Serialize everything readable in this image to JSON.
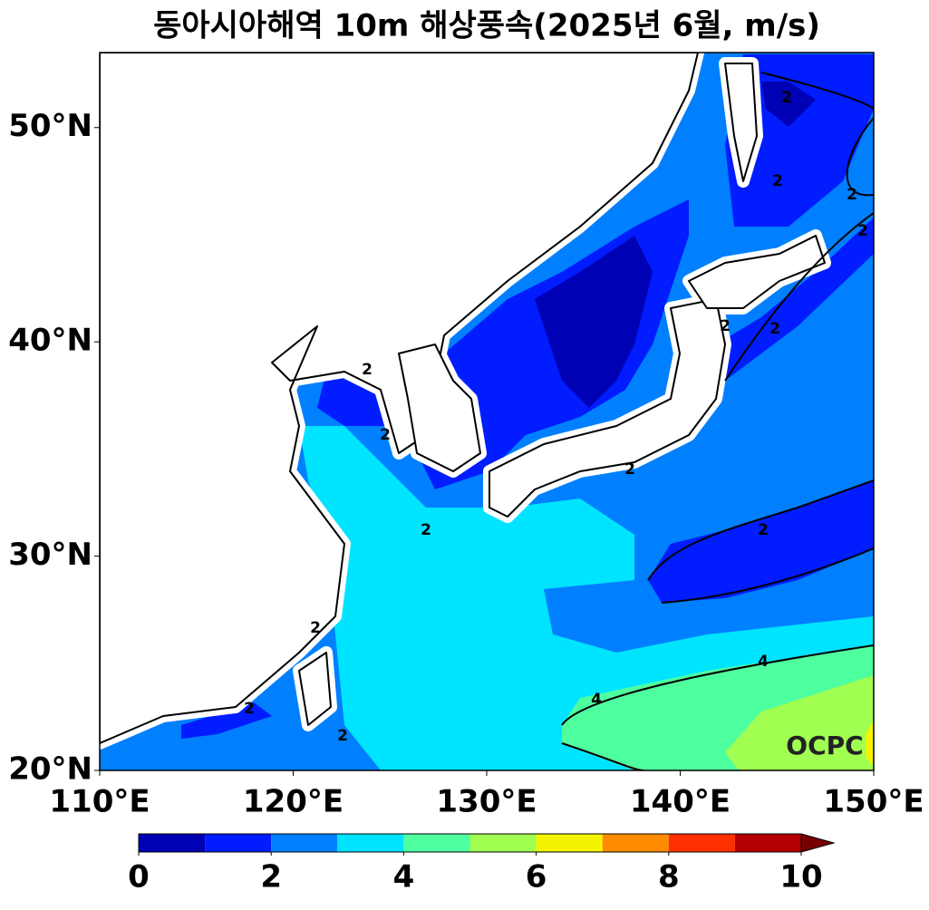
{
  "title": "동아시아해역 10m 해상풍속(2025년 6월, m/s)",
  "map": {
    "xlim": [
      110,
      150
    ],
    "ylim": [
      20,
      53.5
    ],
    "xticks": [
      {
        "value": 110,
        "label": "110°E"
      },
      {
        "value": 120,
        "label": "120°E"
      },
      {
        "value": 130,
        "label": "130°E"
      },
      {
        "value": 140,
        "label": "140°E"
      },
      {
        "value": 150,
        "label": "150°E"
      }
    ],
    "yticks": [
      {
        "value": 20,
        "label": "20°N"
      },
      {
        "value": 30,
        "label": "30°N"
      },
      {
        "value": 40,
        "label": "40°N"
      },
      {
        "value": 50,
        "label": "50°N"
      }
    ]
  },
  "contour_labels": [
    2,
    2,
    2,
    2,
    2,
    2,
    2,
    2,
    2,
    2,
    2,
    2,
    2,
    2,
    4,
    4
  ],
  "colorbar": {
    "levels": [
      0,
      1,
      2,
      3,
      4,
      5,
      6,
      7,
      8,
      9,
      10
    ],
    "colors": [
      "#0000b4",
      "#001cff",
      "#0080ff",
      "#00e4ff",
      "#4effa0",
      "#a0ff50",
      "#f4f400",
      "#ff8c00",
      "#ff3000",
      "#b40000"
    ],
    "extend_color": "#780000",
    "ticks": [
      0,
      2,
      4,
      6,
      8,
      10
    ]
  },
  "watermark": "OCPC"
}
